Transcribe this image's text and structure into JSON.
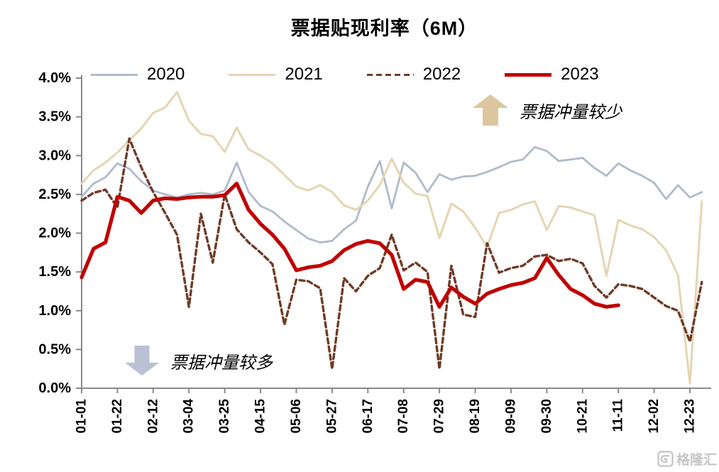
{
  "title": "票据贴现利率（6M）",
  "annotations": {
    "up": {
      "text": "票据冲量较少",
      "color": "#dcc69f"
    },
    "down": {
      "text": "票据冲量较多",
      "color": "#b9c2d4"
    }
  },
  "watermark": {
    "text": "格隆汇"
  },
  "chart_data": {
    "type": "line",
    "title": "票据贴现利率（6M）",
    "xlabel": "",
    "ylabel": "",
    "ylim": [
      0.0,
      4.0
    ],
    "grid": false,
    "legend_position": "top",
    "axis_color": "#8a8a8a",
    "y_ticks": [
      "4.0%",
      "3.5%",
      "3.0%",
      "2.5%",
      "2.0%",
      "1.5%",
      "1.0%",
      "0.5%",
      "0.0%"
    ],
    "x_tick_labels": [
      "01-01",
      "01-22",
      "02-12",
      "03-04",
      "03-25",
      "04-15",
      "05-06",
      "05-27",
      "06-17",
      "07-08",
      "07-29",
      "08-19",
      "09-09",
      "09-30",
      "10-21",
      "11-11",
      "12-02",
      "12-23"
    ],
    "x_unit": "weekly points, ticks every 3 weeks",
    "series": [
      {
        "name": "2020",
        "color": "#b0bacc",
        "dashed": false,
        "width": 2.8,
        "values": [
          2.47,
          2.64,
          2.72,
          2.9,
          2.83,
          2.67,
          2.55,
          2.5,
          2.46,
          2.5,
          2.52,
          2.5,
          2.55,
          2.91,
          2.53,
          2.35,
          2.28,
          2.15,
          2.04,
          1.93,
          1.88,
          1.9,
          2.05,
          2.16,
          2.6,
          2.93,
          2.32,
          2.91,
          2.78,
          2.53,
          2.76,
          2.69,
          2.73,
          2.74,
          2.79,
          2.85,
          2.92,
          2.95,
          3.11,
          3.06,
          2.93,
          2.95,
          2.97,
          2.84,
          2.74,
          2.9,
          2.81,
          2.74,
          2.65,
          2.44,
          2.62,
          2.46,
          2.53
        ]
      },
      {
        "name": "2021",
        "color": "#e5d5b2",
        "dashed": false,
        "width": 3,
        "values": [
          2.64,
          2.81,
          2.91,
          3.04,
          3.2,
          3.35,
          3.55,
          3.62,
          3.82,
          3.45,
          3.28,
          3.25,
          3.05,
          3.36,
          3.08,
          3.0,
          2.9,
          2.75,
          2.6,
          2.55,
          2.62,
          2.53,
          2.36,
          2.3,
          2.42,
          2.62,
          2.96,
          2.65,
          2.51,
          2.48,
          1.94,
          2.38,
          2.28,
          2.07,
          1.82,
          2.26,
          2.3,
          2.37,
          2.41,
          2.04,
          2.35,
          2.33,
          2.28,
          2.23,
          1.45,
          2.17,
          2.1,
          2.05,
          1.95,
          1.78,
          1.46,
          0.06,
          2.41
        ]
      },
      {
        "name": "2022",
        "color": "#6f3b27",
        "dashed": true,
        "width": 3.4,
        "values": [
          2.42,
          2.52,
          2.56,
          2.33,
          3.22,
          2.85,
          2.53,
          2.26,
          1.98,
          1.05,
          2.25,
          1.62,
          2.5,
          2.05,
          1.88,
          1.75,
          1.6,
          0.82,
          1.4,
          1.38,
          1.29,
          0.25,
          1.42,
          1.25,
          1.45,
          1.55,
          1.98,
          1.52,
          1.62,
          1.5,
          0.25,
          1.58,
          0.95,
          0.92,
          1.87,
          1.49,
          1.55,
          1.58,
          1.7,
          1.72,
          1.64,
          1.67,
          1.61,
          1.32,
          1.17,
          1.34,
          1.32,
          1.28,
          1.17,
          1.06,
          1.0,
          0.6,
          1.37
        ]
      },
      {
        "name": "2023",
        "color": "#c00000",
        "dashed": false,
        "width": 5.2,
        "values": [
          1.43,
          1.8,
          1.88,
          2.47,
          2.42,
          2.26,
          2.42,
          2.45,
          2.44,
          2.46,
          2.47,
          2.47,
          2.49,
          2.64,
          2.3,
          2.12,
          1.98,
          1.8,
          1.52,
          1.56,
          1.58,
          1.64,
          1.78,
          1.86,
          1.9,
          1.87,
          1.72,
          1.28,
          1.4,
          1.37,
          1.05,
          1.3,
          1.18,
          1.09,
          1.22,
          1.28,
          1.33,
          1.36,
          1.42,
          1.68,
          1.46,
          1.28,
          1.2,
          1.09,
          1.05,
          1.07
        ]
      }
    ]
  }
}
